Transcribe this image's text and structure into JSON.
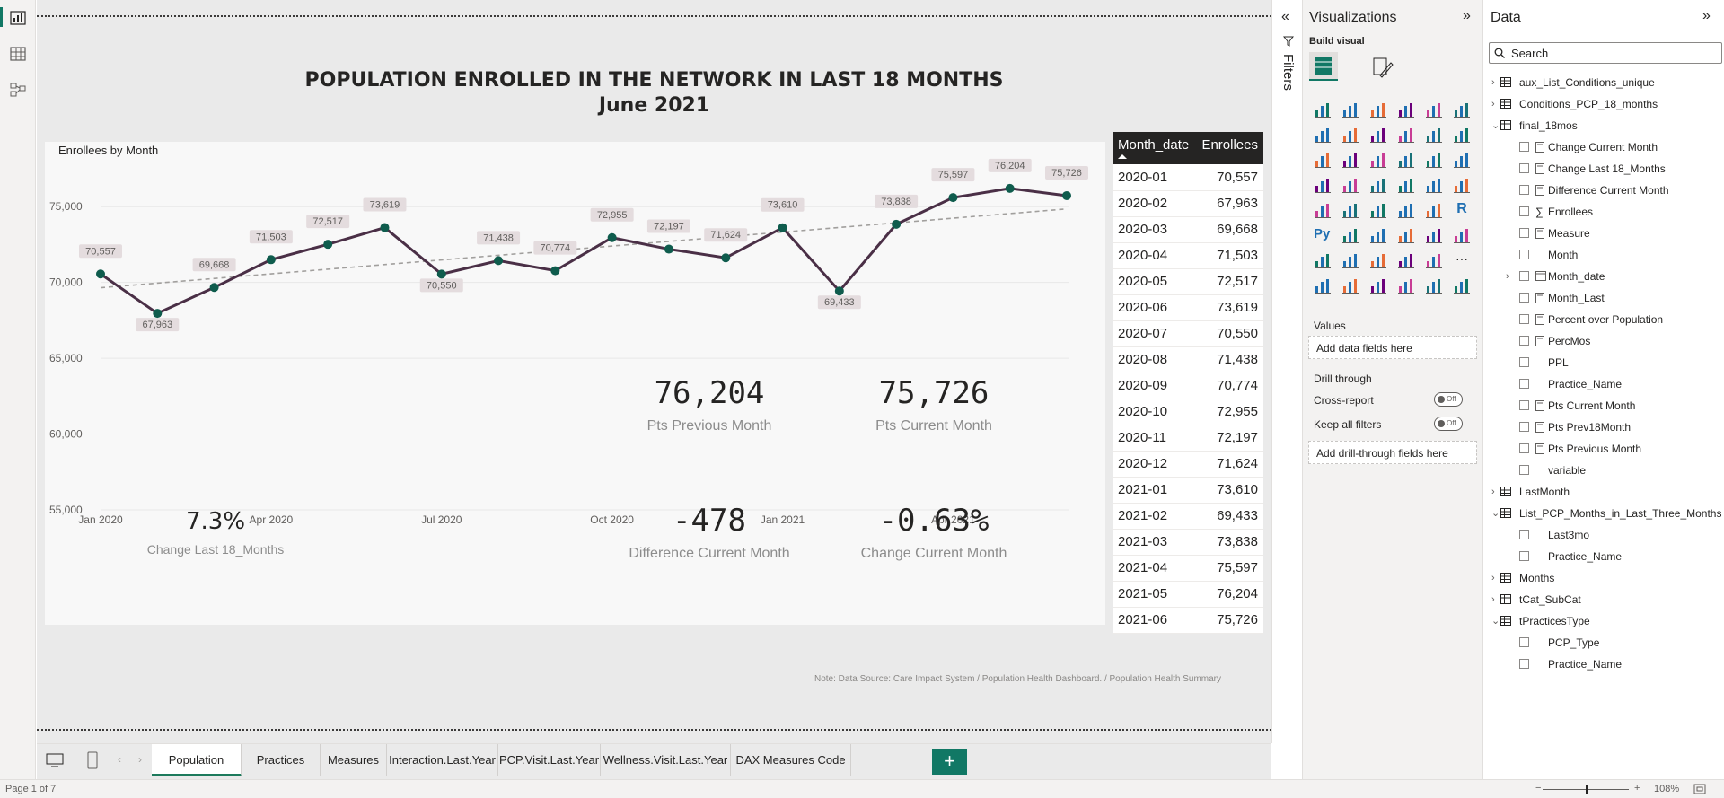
{
  "report": {
    "title_line1": "POPULATION ENROLLED IN THE NETWORK IN LAST 18 MONTHS",
    "title_line2": "June 2021",
    "note": "Note: Data Source: Care Impact System / Population Health Dashboard. / Population Health Summary"
  },
  "kpis": [
    {
      "value": "76,204",
      "label": "Pts Previous Month"
    },
    {
      "value": "75,726",
      "label": "Pts Current Month"
    },
    {
      "value": "7.3%",
      "label": "Change Last 18_Months"
    },
    {
      "value": "-478",
      "label": "Difference Current Month"
    },
    {
      "value": "-0.63%",
      "label": "Change Current Month"
    }
  ],
  "chart_data": {
    "type": "line",
    "title": "Enrollees by Month",
    "xlabel": "",
    "ylabel": "",
    "ylim": [
      55000,
      77500
    ],
    "y_ticks": [
      "75,000",
      "70,000",
      "65,000",
      "60,000",
      "55,000"
    ],
    "y_tick_values": [
      75000,
      70000,
      65000,
      60000,
      55000
    ],
    "x_ticks": [
      "Jan 2020",
      "Apr 2020",
      "Jul 2020",
      "Oct 2020",
      "Jan 2021",
      "Apr 2021"
    ],
    "x_tick_index": [
      0,
      3,
      6,
      9,
      12,
      15
    ],
    "categories": [
      "2020-01",
      "2020-02",
      "2020-03",
      "2020-04",
      "2020-05",
      "2020-06",
      "2020-07",
      "2020-08",
      "2020-09",
      "2020-10",
      "2020-11",
      "2020-12",
      "2021-01",
      "2021-02",
      "2021-03",
      "2021-04",
      "2021-05",
      "2021-06"
    ],
    "values": [
      70557,
      67963,
      69668,
      71503,
      72517,
      73619,
      70550,
      71438,
      70774,
      72955,
      72197,
      71624,
      73610,
      69433,
      73838,
      75597,
      76204,
      75726
    ],
    "data_labels": [
      "70,557",
      "67,963",
      "69,668",
      "71,503",
      "72,517",
      "73,619",
      "70,550",
      "71,438",
      "70,774",
      "72,955",
      "72,197",
      "71,624",
      "73,610",
      "69,433",
      "73,838",
      "75,597",
      "76,204",
      "75,726"
    ],
    "trend_start": 69650,
    "trend_end": 74850,
    "line_color": "#4a2f46",
    "marker_color": "#0f5c4d",
    "trend_color": "#a19f9d"
  },
  "table": {
    "headers": [
      "Month_date",
      "Enrollees"
    ],
    "rows": [
      [
        "2020-01",
        "70,557"
      ],
      [
        "2020-02",
        "67,963"
      ],
      [
        "2020-03",
        "69,668"
      ],
      [
        "2020-04",
        "71,503"
      ],
      [
        "2020-05",
        "72,517"
      ],
      [
        "2020-06",
        "73,619"
      ],
      [
        "2020-07",
        "70,550"
      ],
      [
        "2020-08",
        "71,438"
      ],
      [
        "2020-09",
        "70,774"
      ],
      [
        "2020-10",
        "72,955"
      ],
      [
        "2020-11",
        "72,197"
      ],
      [
        "2020-12",
        "71,624"
      ],
      [
        "2021-01",
        "73,610"
      ],
      [
        "2021-02",
        "69,433"
      ],
      [
        "2021-03",
        "73,838"
      ],
      [
        "2021-04",
        "75,597"
      ],
      [
        "2021-05",
        "76,204"
      ],
      [
        "2021-06",
        "75,726"
      ]
    ]
  },
  "filters": {
    "label": "Filters"
  },
  "viz": {
    "title": "Visualizations",
    "build_visual": "Build visual",
    "values_label": "Values",
    "values_placeholder": "Add data fields here",
    "drill_title": "Drill through",
    "cross_report": "Cross-report",
    "keep_filters": "Keep all filters",
    "toggle_off": "Off",
    "drill_placeholder": "Add drill-through fields here",
    "more": "···"
  },
  "data": {
    "title": "Data",
    "search_placeholder": "Search",
    "fields": [
      {
        "level": 0,
        "kind": "table",
        "expanded": false,
        "label": "aux_List_Conditions_unique"
      },
      {
        "level": 0,
        "kind": "table",
        "expanded": false,
        "label": "Conditions_PCP_18_months"
      },
      {
        "level": 0,
        "kind": "table",
        "expanded": true,
        "label": "final_18mos"
      },
      {
        "level": 1,
        "kind": "measure",
        "label": "Change Current Month"
      },
      {
        "level": 1,
        "kind": "measure",
        "label": "Change Last 18_Months"
      },
      {
        "level": 1,
        "kind": "measure",
        "label": "Difference Current Month"
      },
      {
        "level": 1,
        "kind": "sum",
        "label": "Enrollees"
      },
      {
        "level": 1,
        "kind": "measure",
        "label": "Measure"
      },
      {
        "level": 1,
        "kind": "field",
        "label": "Month"
      },
      {
        "level": 1,
        "kind": "date",
        "label": "Month_date"
      },
      {
        "level": 1,
        "kind": "measure",
        "label": "Month_Last"
      },
      {
        "level": 1,
        "kind": "measure",
        "label": "Percent over Population"
      },
      {
        "level": 1,
        "kind": "measure",
        "label": "PercMos"
      },
      {
        "level": 1,
        "kind": "field",
        "label": "PPL"
      },
      {
        "level": 1,
        "kind": "field",
        "label": "Practice_Name"
      },
      {
        "level": 1,
        "kind": "measure",
        "label": "Pts Current Month"
      },
      {
        "level": 1,
        "kind": "measure",
        "label": "Pts Prev18Month"
      },
      {
        "level": 1,
        "kind": "measure",
        "label": "Pts Previous Month"
      },
      {
        "level": 1,
        "kind": "field",
        "label": "variable"
      },
      {
        "level": 0,
        "kind": "table",
        "expanded": false,
        "label": "LastMonth"
      },
      {
        "level": 0,
        "kind": "table",
        "expanded": true,
        "label": "List_PCP_Months_in_Last_Three_Months"
      },
      {
        "level": 1,
        "kind": "field",
        "label": "Last3mo"
      },
      {
        "level": 1,
        "kind": "field",
        "label": "Practice_Name"
      },
      {
        "level": 0,
        "kind": "table",
        "expanded": false,
        "label": "Months"
      },
      {
        "level": 0,
        "kind": "table",
        "expanded": false,
        "label": "tCat_SubCat"
      },
      {
        "level": 0,
        "kind": "table",
        "expanded": true,
        "label": "tPracticesType"
      },
      {
        "level": 1,
        "kind": "field",
        "label": "PCP_Type"
      },
      {
        "level": 1,
        "kind": "field",
        "label": "Practice_Name"
      }
    ]
  },
  "tabs": [
    "Population",
    "Practices",
    "Measures",
    "Interaction.Last.Year",
    "PCP.Visit.Last.Year",
    "Wellness.Visit.Last.Year",
    "DAX Measures Code"
  ],
  "add_tab": "+",
  "status": {
    "page": "Page 1 of 7",
    "zoom": "108%",
    "zoom_minus": "−",
    "zoom_plus": "+"
  }
}
